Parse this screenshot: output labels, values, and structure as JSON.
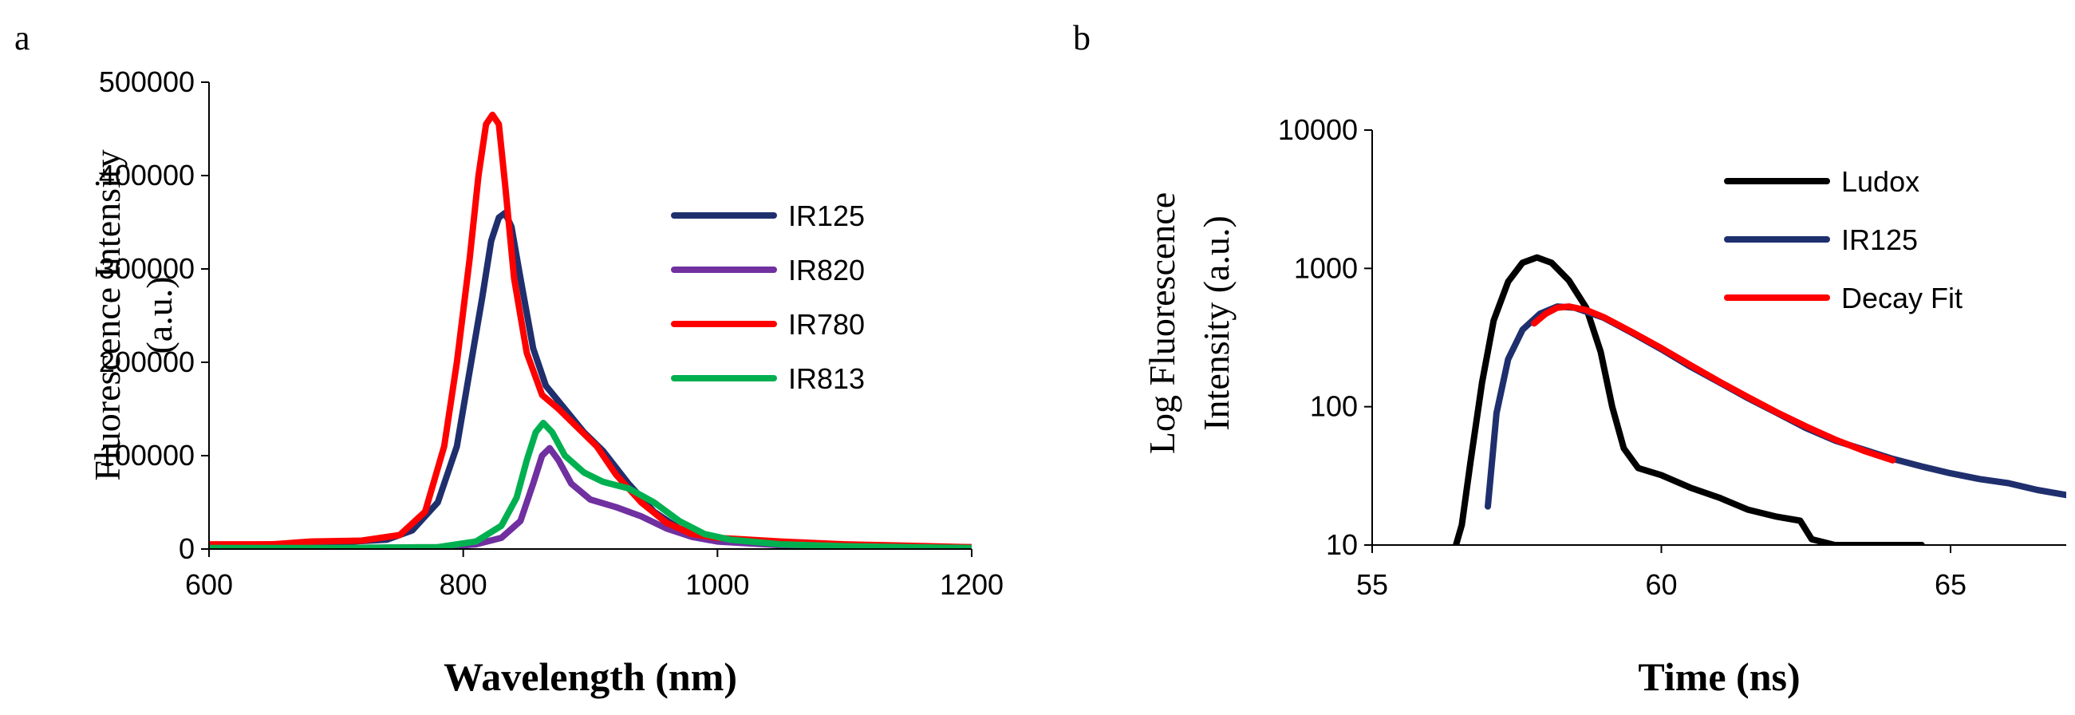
{
  "chart_data": [
    {
      "panel": "a",
      "type": "line",
      "title": "",
      "xlabel": "Wavelength (nm)",
      "ylabel_lines": [
        "Fluorescence Intensity",
        "(a.u.)"
      ],
      "xlim": [
        600,
        1200
      ],
      "ylim": [
        0,
        500000
      ],
      "yscale": "linear",
      "xticks": [
        600,
        800,
        1000,
        1200
      ],
      "xtick_labels": [
        "600",
        "800",
        "1000",
        "1200"
      ],
      "yticks": [
        0,
        100000,
        200000,
        300000,
        400000,
        500000
      ],
      "ytick_labels": [
        "0",
        "100000",
        "200000",
        "300000",
        "400000",
        "500000"
      ],
      "legend_position": "top-right",
      "series": [
        {
          "name": "IR125",
          "color": "#1f2f6e",
          "x": [
            600,
            650,
            700,
            740,
            760,
            780,
            795,
            805,
            815,
            822,
            828,
            833,
            838,
            845,
            855,
            865,
            880,
            895,
            910,
            930,
            950,
            970,
            990,
            1010,
            1050,
            1100,
            1200
          ],
          "y": [
            4000,
            5000,
            7000,
            10000,
            20000,
            50000,
            110000,
            190000,
            270000,
            330000,
            355000,
            360000,
            345000,
            290000,
            215000,
            175000,
            150000,
            125000,
            105000,
            70000,
            40000,
            22000,
            12000,
            8000,
            5000,
            3000,
            2000
          ]
        },
        {
          "name": "IR820",
          "color": "#7030a0",
          "x": [
            600,
            700,
            780,
            810,
            830,
            845,
            855,
            862,
            868,
            875,
            885,
            900,
            920,
            940,
            960,
            980,
            1000,
            1050,
            1100,
            1200
          ],
          "y": [
            1000,
            1000,
            2000,
            5000,
            12000,
            30000,
            70000,
            100000,
            108000,
            95000,
            70000,
            53000,
            45000,
            35000,
            22000,
            13000,
            8000,
            4000,
            2000,
            1000
          ]
        },
        {
          "name": "IR780",
          "color": "#ff0000",
          "x": [
            600,
            650,
            680,
            720,
            750,
            770,
            785,
            795,
            805,
            812,
            818,
            823,
            828,
            833,
            840,
            850,
            862,
            875,
            890,
            905,
            920,
            940,
            960,
            980,
            1000,
            1050,
            1100,
            1200
          ],
          "y": [
            5000,
            5000,
            8000,
            9000,
            15000,
            40000,
            110000,
            200000,
            310000,
            400000,
            455000,
            465000,
            455000,
            390000,
            290000,
            210000,
            165000,
            150000,
            130000,
            110000,
            80000,
            50000,
            28000,
            16000,
            12000,
            8000,
            5000,
            2000
          ]
        },
        {
          "name": "IR813",
          "color": "#00b050",
          "x": [
            600,
            700,
            780,
            810,
            830,
            842,
            850,
            857,
            863,
            870,
            880,
            895,
            910,
            930,
            950,
            970,
            990,
            1010,
            1050,
            1100,
            1200
          ],
          "y": [
            1000,
            1000,
            2000,
            8000,
            25000,
            55000,
            95000,
            125000,
            135000,
            125000,
            100000,
            82000,
            72000,
            65000,
            50000,
            30000,
            16000,
            10000,
            5000,
            3000,
            1000
          ]
        }
      ]
    },
    {
      "panel": "b",
      "type": "line",
      "title": "",
      "xlabel": "Time (ns)",
      "ylabel_lines": [
        "Log Fluorescence",
        "Intensity (a.u.)"
      ],
      "xlim": [
        55,
        67
      ],
      "ylim": [
        10,
        10000
      ],
      "yscale": "log",
      "xticks": [
        55,
        60,
        65
      ],
      "xtick_labels": [
        "55",
        "60",
        "65"
      ],
      "yticks": [
        10,
        100,
        1000,
        10000
      ],
      "ytick_labels": [
        "10",
        "100",
        "1000",
        "10000"
      ],
      "legend_position": "top-right",
      "series": [
        {
          "name": "Ludox",
          "color": "#000000",
          "x": [
            56.45,
            56.55,
            56.7,
            56.9,
            57.1,
            57.35,
            57.6,
            57.85,
            58.1,
            58.4,
            58.7,
            58.95,
            59.15,
            59.35,
            59.6,
            60.0,
            60.5,
            61.0,
            61.5,
            62.0,
            62.4,
            62.6,
            63.0,
            63.5,
            64.0,
            64.5
          ],
          "y": [
            10,
            14,
            40,
            150,
            420,
            800,
            1100,
            1200,
            1100,
            820,
            520,
            250,
            100,
            50,
            36,
            32,
            26,
            22,
            18,
            16,
            15,
            11,
            10,
            10,
            10,
            10
          ]
        },
        {
          "name": "IR125",
          "color": "#1f2f6e",
          "x": [
            57.0,
            57.15,
            57.35,
            57.6,
            57.9,
            58.2,
            58.5,
            59.0,
            59.5,
            60.0,
            60.5,
            61.0,
            61.5,
            62.0,
            62.5,
            63.0,
            63.5,
            64.0,
            64.5,
            65.0,
            65.5,
            66.0,
            66.5,
            67.0
          ],
          "y": [
            19,
            90,
            220,
            360,
            470,
            530,
            520,
            440,
            340,
            260,
            195,
            150,
            115,
            90,
            70,
            57,
            49,
            42,
            37,
            33,
            30,
            28,
            25,
            23
          ]
        },
        {
          "name": "Decay Fit",
          "color": "#ff0000",
          "x": [
            57.8,
            58.0,
            58.2,
            58.4,
            58.7,
            59.0,
            59.5,
            60.0,
            60.5,
            61.0,
            61.5,
            62.0,
            62.5,
            63.0,
            63.5,
            64.0
          ],
          "y": [
            400,
            470,
            520,
            530,
            500,
            445,
            345,
            265,
            200,
            152,
            117,
            91,
            72,
            58,
            48,
            41
          ]
        }
      ]
    }
  ],
  "panels": {
    "a": {
      "letter": "a"
    },
    "b": {
      "letter": "b"
    }
  }
}
